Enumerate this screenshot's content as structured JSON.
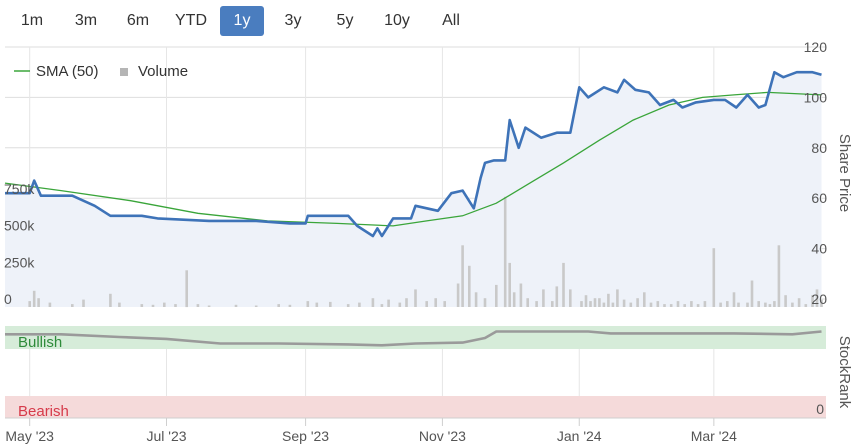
{
  "range_selector": {
    "buttons": [
      "1m",
      "3m",
      "6m",
      "YTD",
      "1y",
      "3y",
      "5y",
      "10y",
      "All"
    ],
    "selected": "1y"
  },
  "colors": {
    "price_line": "#3e73b8",
    "price_fill": "#eef2f9",
    "sma_line": "#3aa53a",
    "volume_bar": "#c9c9c9",
    "stockrank_line": "#9a9a9a",
    "bullish_band": "#d6ecd9",
    "bearish_band": "#f5dada",
    "bullish_text": "#2e8b3a",
    "bearish_text": "#d63a4a",
    "active_button": "#4a7dbf"
  },
  "chart_data": {
    "type": "line",
    "legend": [
      {
        "name": "SMA (50)",
        "symbol": "line"
      },
      {
        "name": "Volume",
        "symbol": "square"
      }
    ],
    "legend_position": "top-left",
    "x_axis": {
      "range": [
        "2023-04-20",
        "2024-04-20"
      ],
      "tick_labels": [
        "May '23",
        "Jul '23",
        "Sep '23",
        "Nov '23",
        "Jan '24",
        "Mar '24"
      ],
      "tick_dates": [
        "2023-05-01",
        "2023-07-01",
        "2023-09-01",
        "2023-11-01",
        "2024-01-01",
        "2024-03-01"
      ]
    },
    "price_axis": {
      "label": "Share Price",
      "range": [
        20,
        120
      ],
      "ticks": [
        20,
        40,
        60,
        80,
        100,
        120
      ]
    },
    "volume_axis": {
      "range": [
        0,
        1000000
      ],
      "ticks": [
        0,
        250000,
        500000,
        750000
      ],
      "tick_labels": [
        "0",
        "250k",
        "500k",
        "750k"
      ]
    },
    "stockrank_axis": {
      "label": "StockRank",
      "range": [
        0,
        100
      ],
      "tick_labels": [
        "0"
      ]
    },
    "stockrank_bands": {
      "bullish": "Bullish",
      "bearish": "Bearish"
    },
    "series": [
      {
        "name": "Share Price",
        "axis": "price",
        "points": [
          [
            "2023-04-20",
            62
          ],
          [
            "2023-05-01",
            62
          ],
          [
            "2023-05-03",
            67
          ],
          [
            "2023-05-06",
            61
          ],
          [
            "2023-05-20",
            61
          ],
          [
            "2023-05-30",
            57
          ],
          [
            "2023-06-06",
            53
          ],
          [
            "2023-06-20",
            53
          ],
          [
            "2023-06-27",
            52
          ],
          [
            "2023-07-20",
            51
          ],
          [
            "2023-08-10",
            51
          ],
          [
            "2023-08-25",
            50
          ],
          [
            "2023-09-01",
            50
          ],
          [
            "2023-09-02",
            53
          ],
          [
            "2023-09-20",
            53
          ],
          [
            "2023-09-24",
            49
          ],
          [
            "2023-10-01",
            45
          ],
          [
            "2023-10-03",
            48
          ],
          [
            "2023-10-05",
            45
          ],
          [
            "2023-10-10",
            52
          ],
          [
            "2023-10-18",
            52
          ],
          [
            "2023-10-20",
            57
          ],
          [
            "2023-10-25",
            56
          ],
          [
            "2023-10-30",
            55
          ],
          [
            "2023-11-05",
            62
          ],
          [
            "2023-11-10",
            63
          ],
          [
            "2023-11-15",
            56
          ],
          [
            "2023-11-18",
            68
          ],
          [
            "2023-11-20",
            74
          ],
          [
            "2023-11-24",
            75
          ],
          [
            "2023-11-29",
            75
          ],
          [
            "2023-12-01",
            91
          ],
          [
            "2023-12-05",
            80
          ],
          [
            "2023-12-08",
            88
          ],
          [
            "2023-12-15",
            84
          ],
          [
            "2023-12-22",
            86
          ],
          [
            "2023-12-28",
            86
          ],
          [
            "2024-01-01",
            104
          ],
          [
            "2024-01-05",
            100
          ],
          [
            "2024-01-12",
            104
          ],
          [
            "2024-01-18",
            102
          ],
          [
            "2024-01-21",
            107
          ],
          [
            "2024-01-26",
            103
          ],
          [
            "2024-02-01",
            102
          ],
          [
            "2024-02-06",
            97
          ],
          [
            "2024-02-12",
            99
          ],
          [
            "2024-02-16",
            96
          ],
          [
            "2024-02-22",
            98
          ],
          [
            "2024-03-01",
            99
          ],
          [
            "2024-03-06",
            99
          ],
          [
            "2024-03-11",
            96
          ],
          [
            "2024-03-16",
            101
          ],
          [
            "2024-03-21",
            96
          ],
          [
            "2024-03-24",
            97
          ],
          [
            "2024-03-28",
            110
          ],
          [
            "2024-04-01",
            108
          ],
          [
            "2024-04-07",
            110
          ],
          [
            "2024-04-14",
            110
          ],
          [
            "2024-04-18",
            109
          ]
        ]
      },
      {
        "name": "SMA (50)",
        "axis": "price",
        "points": [
          [
            "2023-04-20",
            66
          ],
          [
            "2023-05-15",
            63
          ],
          [
            "2023-06-15",
            59
          ],
          [
            "2023-07-15",
            54
          ],
          [
            "2023-08-15",
            51
          ],
          [
            "2023-09-15",
            50
          ],
          [
            "2023-10-10",
            49
          ],
          [
            "2023-10-25",
            51
          ],
          [
            "2023-11-10",
            53
          ],
          [
            "2023-11-25",
            58
          ],
          [
            "2023-12-10",
            66
          ],
          [
            "2023-12-25",
            74
          ],
          [
            "2024-01-10",
            83
          ],
          [
            "2024-01-25",
            91
          ],
          [
            "2024-02-10",
            97
          ],
          [
            "2024-02-25",
            100
          ],
          [
            "2024-03-10",
            101
          ],
          [
            "2024-03-25",
            102
          ],
          [
            "2024-04-18",
            101
          ]
        ]
      },
      {
        "name": "StockRank",
        "axis": "stockrank",
        "points": [
          [
            "2023-04-20",
            91
          ],
          [
            "2023-05-15",
            91
          ],
          [
            "2023-06-10",
            88
          ],
          [
            "2023-07-01",
            86
          ],
          [
            "2023-07-25",
            81
          ],
          [
            "2023-08-20",
            81
          ],
          [
            "2023-09-20",
            80
          ],
          [
            "2023-10-05",
            79
          ],
          [
            "2023-10-20",
            81
          ],
          [
            "2023-11-10",
            82
          ],
          [
            "2023-11-20",
            87
          ],
          [
            "2023-11-25",
            94
          ],
          [
            "2023-12-15",
            94
          ],
          [
            "2024-01-05",
            94
          ],
          [
            "2024-01-15",
            92
          ],
          [
            "2024-02-15",
            92
          ],
          [
            "2024-03-10",
            92
          ],
          [
            "2024-04-05",
            91
          ],
          [
            "2024-04-18",
            94
          ]
        ]
      },
      {
        "name": "Volume",
        "axis": "volume",
        "type": "bar",
        "points": [
          [
            "2023-05-01",
            40000
          ],
          [
            "2023-05-03",
            110000
          ],
          [
            "2023-05-05",
            60000
          ],
          [
            "2023-05-10",
            30000
          ],
          [
            "2023-05-20",
            20000
          ],
          [
            "2023-05-25",
            50000
          ],
          [
            "2023-06-06",
            90000
          ],
          [
            "2023-06-10",
            30000
          ],
          [
            "2023-06-20",
            20000
          ],
          [
            "2023-06-25",
            15000
          ],
          [
            "2023-06-30",
            30000
          ],
          [
            "2023-07-05",
            20000
          ],
          [
            "2023-07-10",
            250000
          ],
          [
            "2023-07-15",
            20000
          ],
          [
            "2023-07-20",
            10000
          ],
          [
            "2023-08-01",
            15000
          ],
          [
            "2023-08-10",
            10000
          ],
          [
            "2023-08-20",
            20000
          ],
          [
            "2023-08-25",
            15000
          ],
          [
            "2023-09-02",
            40000
          ],
          [
            "2023-09-06",
            30000
          ],
          [
            "2023-09-12",
            35000
          ],
          [
            "2023-09-20",
            20000
          ],
          [
            "2023-09-25",
            30000
          ],
          [
            "2023-10-01",
            60000
          ],
          [
            "2023-10-05",
            20000
          ],
          [
            "2023-10-08",
            50000
          ],
          [
            "2023-10-13",
            30000
          ],
          [
            "2023-10-16",
            60000
          ],
          [
            "2023-10-20",
            120000
          ],
          [
            "2023-10-25",
            40000
          ],
          [
            "2023-10-29",
            60000
          ],
          [
            "2023-11-02",
            40000
          ],
          [
            "2023-11-08",
            160000
          ],
          [
            "2023-11-10",
            420000
          ],
          [
            "2023-11-13",
            280000
          ],
          [
            "2023-11-16",
            100000
          ],
          [
            "2023-11-20",
            60000
          ],
          [
            "2023-11-25",
            150000
          ],
          [
            "2023-11-29",
            750000
          ],
          [
            "2023-12-01",
            300000
          ],
          [
            "2023-12-03",
            100000
          ],
          [
            "2023-12-06",
            160000
          ],
          [
            "2023-12-09",
            60000
          ],
          [
            "2023-12-13",
            40000
          ],
          [
            "2023-12-16",
            120000
          ],
          [
            "2023-12-20",
            40000
          ],
          [
            "2023-12-22",
            140000
          ],
          [
            "2023-12-25",
            300000
          ],
          [
            "2023-12-28",
            120000
          ],
          [
            "2024-01-02",
            40000
          ],
          [
            "2024-01-04",
            80000
          ],
          [
            "2024-01-06",
            40000
          ],
          [
            "2024-01-08",
            60000
          ],
          [
            "2024-01-10",
            60000
          ],
          [
            "2024-01-12",
            30000
          ],
          [
            "2024-01-14",
            90000
          ],
          [
            "2024-01-16",
            30000
          ],
          [
            "2024-01-18",
            120000
          ],
          [
            "2024-01-21",
            50000
          ],
          [
            "2024-01-24",
            30000
          ],
          [
            "2024-01-27",
            60000
          ],
          [
            "2024-01-30",
            100000
          ],
          [
            "2024-02-02",
            30000
          ],
          [
            "2024-02-05",
            40000
          ],
          [
            "2024-02-08",
            20000
          ],
          [
            "2024-02-11",
            20000
          ],
          [
            "2024-02-14",
            40000
          ],
          [
            "2024-02-17",
            20000
          ],
          [
            "2024-02-20",
            40000
          ],
          [
            "2024-02-23",
            20000
          ],
          [
            "2024-02-26",
            40000
          ],
          [
            "2024-03-01",
            400000
          ],
          [
            "2024-03-04",
            30000
          ],
          [
            "2024-03-07",
            40000
          ],
          [
            "2024-03-10",
            100000
          ],
          [
            "2024-03-12",
            30000
          ],
          [
            "2024-03-16",
            30000
          ],
          [
            "2024-03-18",
            180000
          ],
          [
            "2024-03-21",
            40000
          ],
          [
            "2024-03-24",
            30000
          ],
          [
            "2024-03-26",
            20000
          ],
          [
            "2024-03-28",
            40000
          ],
          [
            "2024-03-30",
            420000
          ],
          [
            "2024-04-02",
            80000
          ],
          [
            "2024-04-05",
            30000
          ],
          [
            "2024-04-08",
            60000
          ],
          [
            "2024-04-11",
            20000
          ],
          [
            "2024-04-14",
            80000
          ],
          [
            "2024-04-16",
            120000
          ],
          [
            "2024-04-18",
            50000
          ]
        ]
      }
    ],
    "grid": true
  }
}
